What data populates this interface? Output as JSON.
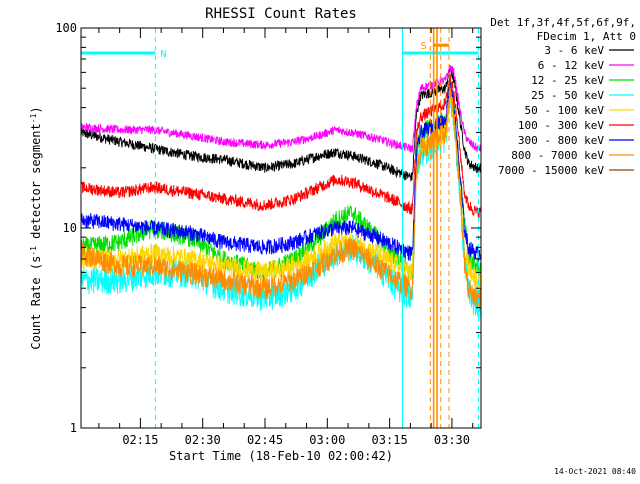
{
  "chart_data": {
    "type": "line",
    "title": "RHESSI Count Rates",
    "xlabel": "Start Time (18-Feb-10 02:00:42)",
    "ylabel": "Count Rate (s⁻¹ detector segment⁻¹)",
    "ylabel_parts": [
      "Count Rate (s",
      "-1",
      " detector segment",
      "-1",
      ")"
    ],
    "yscale": "log",
    "ylim": [
      1,
      100
    ],
    "y_tick_labels": [
      {
        "value": 1,
        "label": "1"
      },
      {
        "value": 10,
        "label": "10"
      },
      {
        "value": 100,
        "label": "100"
      }
    ],
    "x_range_minutes": [
      0.7,
      97.0
    ],
    "x_ticks": [
      {
        "minutes": 15,
        "label": "02:15"
      },
      {
        "minutes": 30,
        "label": "02:30"
      },
      {
        "minutes": 45,
        "label": "02:45"
      },
      {
        "minutes": 60,
        "label": "03:00"
      },
      {
        "minutes": 75,
        "label": "03:15"
      },
      {
        "minutes": 90,
        "label": "03:30"
      }
    ],
    "legend_header": [
      "Det 1f,3f,4f,5f,6f,9f,",
      "FDecim 1, Att 0"
    ],
    "series": [
      {
        "name": "3 - 6 keV",
        "color": "#000000",
        "x": [
          0.7,
          10,
          18,
          27,
          35,
          45,
          52,
          58,
          62,
          66,
          72,
          77,
          80,
          80.5,
          81.5,
          82.5,
          88.5,
          89.5,
          90.5,
          92,
          93,
          94,
          96,
          97
        ],
        "y": [
          30,
          27,
          25,
          23,
          22,
          20,
          21,
          23,
          24,
          23,
          21,
          19,
          18,
          18,
          38,
          46,
          50,
          63,
          55,
          34,
          25,
          21,
          20,
          20
        ]
      },
      {
        "name": "6 - 12 keV",
        "color": "#ff00ff",
        "x": [
          0.7,
          10,
          18,
          27,
          35,
          45,
          52,
          58,
          62,
          66,
          72,
          77,
          80,
          80.5,
          81.5,
          82.5,
          88.5,
          89.5,
          90.5,
          92,
          93,
          94,
          96,
          97
        ],
        "y": [
          32,
          31,
          31,
          29,
          27,
          26,
          27,
          29,
          31,
          30,
          28,
          26,
          25,
          25,
          41,
          50,
          55,
          64,
          60,
          38,
          30,
          27,
          25,
          25
        ]
      },
      {
        "name": "12 - 25 keV",
        "color": "#00dd00",
        "x": [
          0.7,
          10,
          18,
          27,
          35,
          45,
          52,
          58,
          62,
          66,
          72,
          77,
          80,
          80.5,
          81.5,
          82.5,
          88.5,
          89.5,
          90.5,
          92,
          93,
          94,
          96,
          97
        ],
        "y": [
          8,
          8.5,
          10,
          9,
          7,
          6,
          7,
          9,
          11,
          12,
          9,
          7,
          6,
          6,
          25,
          30,
          35,
          55,
          40,
          18,
          11,
          7,
          6.5,
          6
        ]
      },
      {
        "name": "25 - 50 keV",
        "color": "#00ffff",
        "x": [
          0.7,
          10,
          18,
          27,
          35,
          45,
          52,
          58,
          62,
          66,
          72,
          77,
          80,
          80.5,
          81.5,
          82.5,
          88.5,
          89.5,
          90.5,
          92,
          93,
          94,
          96,
          97
        ],
        "y": [
          5.5,
          5.5,
          6,
          6,
          5,
          4.5,
          5,
          6.5,
          7.5,
          8,
          6.5,
          5,
          4.5,
          4.5,
          20,
          24,
          28,
          45,
          35,
          14,
          7,
          5,
          4,
          4
        ]
      },
      {
        "name": "50 - 100 keV",
        "color": "#ffd700",
        "x": [
          0.7,
          10,
          18,
          27,
          35,
          45,
          52,
          58,
          62,
          66,
          72,
          77,
          80,
          80.5,
          81.5,
          82.5,
          88.5,
          89.5,
          90.5,
          92,
          93,
          94,
          96,
          97
        ],
        "y": [
          7,
          7,
          7.5,
          7,
          6.5,
          6,
          6.5,
          7.5,
          8.5,
          8.5,
          7.5,
          6.5,
          6,
          6,
          20,
          25,
          30,
          48,
          36,
          15,
          8,
          6.5,
          5.5,
          5.5
        ]
      },
      {
        "name": "100 - 300 keV",
        "color": "#ff0000",
        "x": [
          0.7,
          10,
          18,
          27,
          35,
          45,
          52,
          58,
          62,
          66,
          72,
          77,
          80,
          80.5,
          81.5,
          82.5,
          88.5,
          89.5,
          90.5,
          92,
          93,
          94,
          96,
          97
        ],
        "y": [
          16,
          15,
          16,
          15,
          14,
          13,
          14,
          16,
          17.5,
          17,
          15,
          13.5,
          12.5,
          12.5,
          30,
          36,
          42,
          58,
          48,
          24,
          15,
          13,
          12,
          12
        ]
      },
      {
        "name": "300 - 800 keV",
        "color": "#0000ff",
        "x": [
          0.7,
          10,
          18,
          27,
          35,
          45,
          52,
          58,
          62,
          66,
          72,
          77,
          80,
          80.5,
          81.5,
          82.5,
          88.5,
          89.5,
          90.5,
          92,
          93,
          94,
          96,
          97
        ],
        "y": [
          11,
          10.5,
          10,
          9.5,
          8.5,
          8,
          8.5,
          9.5,
          10,
          10,
          9,
          8,
          7.5,
          7.5,
          24,
          30,
          35,
          55,
          40,
          18,
          10,
          8,
          7.5,
          7.5
        ]
      },
      {
        "name": "800 - 7000 keV",
        "color": "#ff8c00",
        "x": [
          0.7,
          10,
          18,
          27,
          35,
          45,
          52,
          58,
          62,
          66,
          72,
          77,
          80,
          80.5,
          81.5,
          82.5,
          88.5,
          89.5,
          90.5,
          92,
          93,
          94,
          96,
          97
        ],
        "y": [
          7.5,
          6.5,
          6.5,
          6,
          5.5,
          5,
          5.5,
          6.5,
          7.5,
          8,
          6.5,
          5.5,
          5,
          5,
          20,
          25,
          30,
          48,
          36,
          15,
          7,
          5,
          4.5,
          4.5
        ]
      },
      {
        "name": "7000 - 15000 keV",
        "color": "#8b4513",
        "x": [],
        "y": []
      }
    ],
    "annotations": {
      "night": {
        "label": "N",
        "color": "#00ffff",
        "start_minutes": 0.7,
        "end_minutes": 18.6,
        "y": 75
      },
      "saa": {
        "label": "S",
        "color": "#ff8c00",
        "start_minutes": 85.6,
        "end_minutes": 89.3,
        "y": 82
      },
      "cyan_vertical_minutes": [
        0.7,
        18.6,
        78.1,
        96.4
      ],
      "orange_vertical_minutes": [
        84.8,
        85.6,
        86.4,
        87.3,
        89.3
      ],
      "cyan_bar2": {
        "start_minutes": 78.1,
        "end_minutes": 96.4,
        "y": 75
      }
    },
    "footer_timestamp": "14-Oct-2021 08:40"
  }
}
